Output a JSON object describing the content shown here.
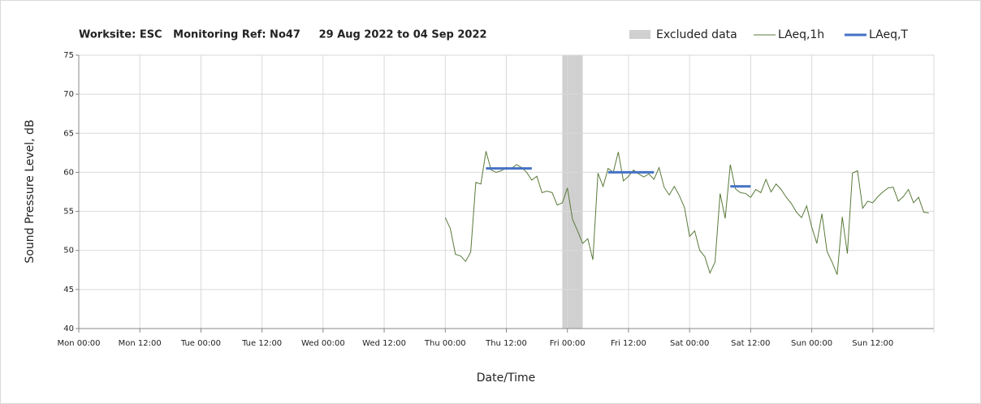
{
  "chart_data": {
    "type": "line",
    "title": "Worksite: ESC   Monitoring Ref: No47     29 Aug 2022 to 04 Sep 2022",
    "x_label": "Date/Time",
    "y_label": "Sound Pressure Level, dB",
    "xlim": [
      0,
      168
    ],
    "ylim": [
      40,
      75
    ],
    "xticks": [
      {
        "value": 0,
        "label": "Mon 00:00"
      },
      {
        "value": 12,
        "label": "Mon 12:00"
      },
      {
        "value": 24,
        "label": "Tue 00:00"
      },
      {
        "value": 36,
        "label": "Tue 12:00"
      },
      {
        "value": 48,
        "label": "Wed 00:00"
      },
      {
        "value": 60,
        "label": "Wed 12:00"
      },
      {
        "value": 72,
        "label": "Thu 00:00"
      },
      {
        "value": 84,
        "label": "Thu 12:00"
      },
      {
        "value": 96,
        "label": "Fri 00:00"
      },
      {
        "value": 108,
        "label": "Fri 12:00"
      },
      {
        "value": 120,
        "label": "Sat 00:00"
      },
      {
        "value": 132,
        "label": "Sat 12:00"
      },
      {
        "value": 144,
        "label": "Sun 00:00"
      },
      {
        "value": 156,
        "label": "Sun 12:00"
      }
    ],
    "yticks": [
      40,
      45,
      50,
      55,
      60,
      65,
      70,
      75
    ],
    "grid": true,
    "excluded": {
      "name": "Excluded data",
      "color": "#d0d0d0",
      "x": [
        95,
        99
      ]
    },
    "series": [
      {
        "name": "LAeq,1h",
        "color": "#5a7a3a",
        "x": [
          72,
          73,
          74,
          75,
          76,
          77,
          78,
          79,
          80,
          81,
          82,
          83,
          84,
          85,
          86,
          87,
          88,
          89,
          90,
          91,
          92,
          93,
          94,
          95,
          96,
          97,
          98,
          99,
          100,
          101,
          102,
          103,
          104,
          105,
          106,
          107,
          108,
          109,
          110,
          111,
          112,
          113,
          114,
          115,
          116,
          117,
          118,
          119,
          120,
          121,
          122,
          123,
          124,
          125,
          126,
          127,
          128,
          129,
          130,
          131,
          132,
          133,
          134,
          135,
          136,
          137,
          138,
          139,
          140,
          141,
          142,
          143,
          144,
          145,
          146,
          147,
          148,
          149,
          150,
          151,
          152,
          153,
          154,
          155,
          156,
          157,
          158,
          159,
          160,
          161,
          162,
          163,
          164,
          165,
          166,
          167
        ],
        "values": [
          54.2,
          52.8,
          49.5,
          49.3,
          48.6,
          49.8,
          58.7,
          58.5,
          62.7,
          60.3,
          60.0,
          60.2,
          60.6,
          60.5,
          61.0,
          60.6,
          60.0,
          59.0,
          59.5,
          57.4,
          57.6,
          57.4,
          55.8,
          56.1,
          58.0,
          54.0,
          52.5,
          50.9,
          51.5,
          48.8,
          59.9,
          58.2,
          60.5,
          60.0,
          62.6,
          58.9,
          59.5,
          60.3,
          59.8,
          59.4,
          59.8,
          59.1,
          60.6,
          58.1,
          57.1,
          58.2,
          57.0,
          55.5,
          51.8,
          52.5,
          50.0,
          49.2,
          47.1,
          48.5,
          57.3,
          54.1,
          61.0,
          57.9,
          57.4,
          57.3,
          56.8,
          57.8,
          57.4,
          59.1,
          57.5,
          58.5,
          57.8,
          56.8,
          56.0,
          54.9,
          54.2,
          55.7,
          53.0,
          50.9,
          54.7,
          49.9,
          48.5,
          46.9,
          54.3,
          49.6,
          59.9,
          60.2,
          55.4,
          56.3,
          56.1,
          56.9,
          57.5,
          58.0,
          58.1,
          56.3,
          56.9,
          57.8,
          56.1,
          56.8,
          54.9,
          54.8
        ]
      },
      {
        "name": "LAeq,T",
        "color": "#4472c4",
        "width": 3,
        "x": [
          80,
          89,
          null,
          104,
          113,
          null,
          128,
          132
        ],
        "values": [
          60.5,
          60.5,
          null,
          60.0,
          60.0,
          null,
          58.2,
          58.2
        ]
      }
    ]
  }
}
